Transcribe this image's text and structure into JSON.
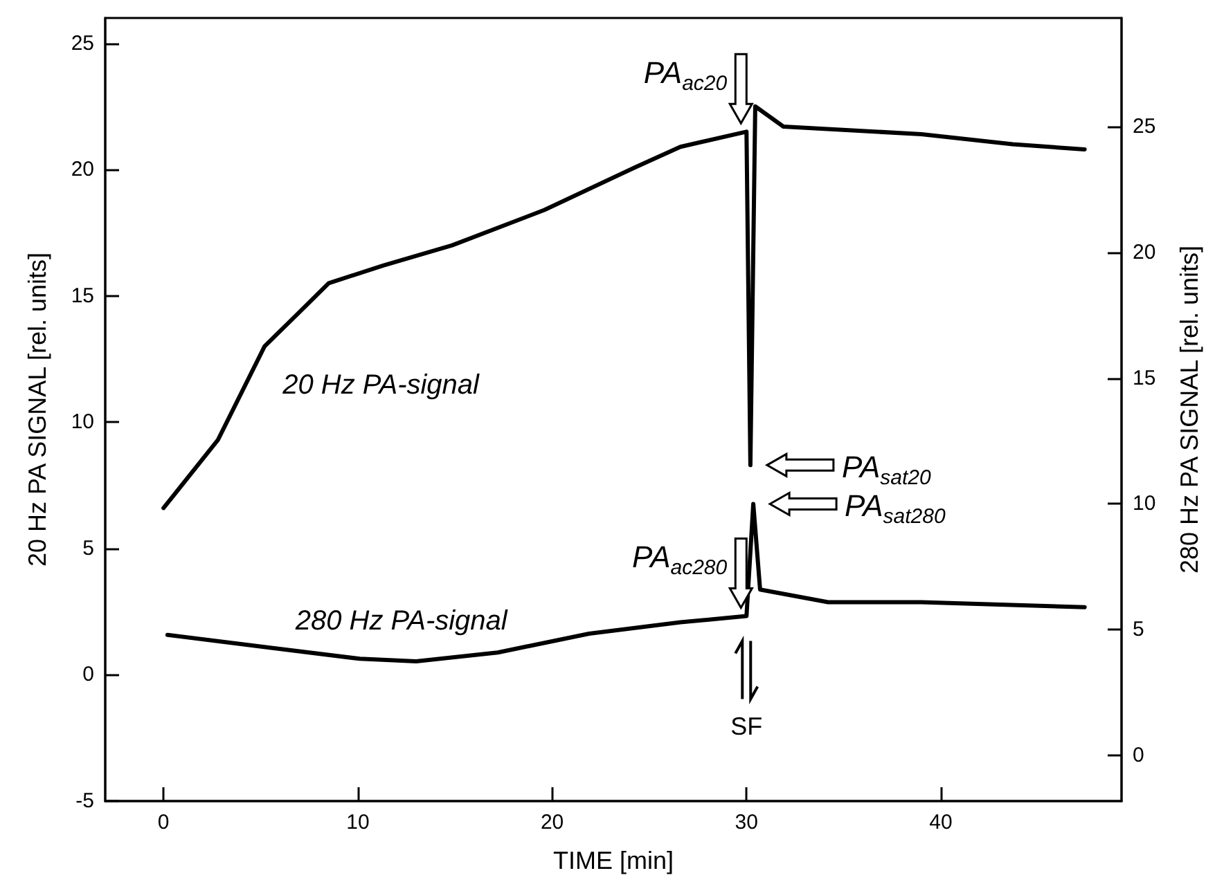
{
  "chart_data": {
    "type": "line",
    "xlabel": "TIME [min]",
    "ylabel": "20 Hz PA SIGNAL [rel. units]",
    "y2label": "280 Hz PA SIGNAL [rel. units]",
    "xlim": [
      -3,
      49.3
    ],
    "xticks": [
      0,
      10,
      20,
      30,
      40
    ],
    "ylim": [
      -5,
      26
    ],
    "yticks": [
      -5,
      0,
      5,
      10,
      15,
      20,
      25
    ],
    "y2lim": [
      -1.8,
      29.3
    ],
    "y2ticks": [
      0,
      5,
      10,
      15,
      20,
      25
    ],
    "grid": false,
    "legend": false,
    "marker": "none",
    "line_style": "solid",
    "series": [
      {
        "name": "20 Hz PA-signal",
        "color": "#000000",
        "x": [
          0,
          2.8,
          5.2,
          7.05,
          8.5,
          11.3,
          14.85,
          19.6,
          24.3,
          26.6,
          30.0,
          30.2,
          30.45,
          31.9,
          39,
          43.7,
          47.4
        ],
        "values": [
          6.6,
          9.3,
          13.0,
          14.4,
          15.5,
          16.2,
          17.0,
          18.4,
          20.1,
          20.9,
          21.5,
          8.3,
          22.5,
          21.7,
          21.4,
          21.0,
          20.8
        ]
      },
      {
        "name": "280 Hz PA-signal",
        "color": "#000000",
        "axis": "y2",
        "x": [
          0.2,
          5.4,
          10.1,
          13,
          17.2,
          21.9,
          26.6,
          30.0,
          30.35,
          30.7,
          34.2,
          39,
          47.4
        ],
        "values": [
          4.8,
          4.3,
          3.85,
          3.75,
          4.1,
          4.85,
          5.3,
          5.55,
          10.0,
          6.6,
          6.1,
          6.1,
          5.9
        ]
      }
    ],
    "annotations": [
      "PA$_{ac20}$",
      "PA$_{sat20}$",
      "PA$_{sat280}$",
      "PA$_{ac280}$",
      "SF"
    ]
  }
}
